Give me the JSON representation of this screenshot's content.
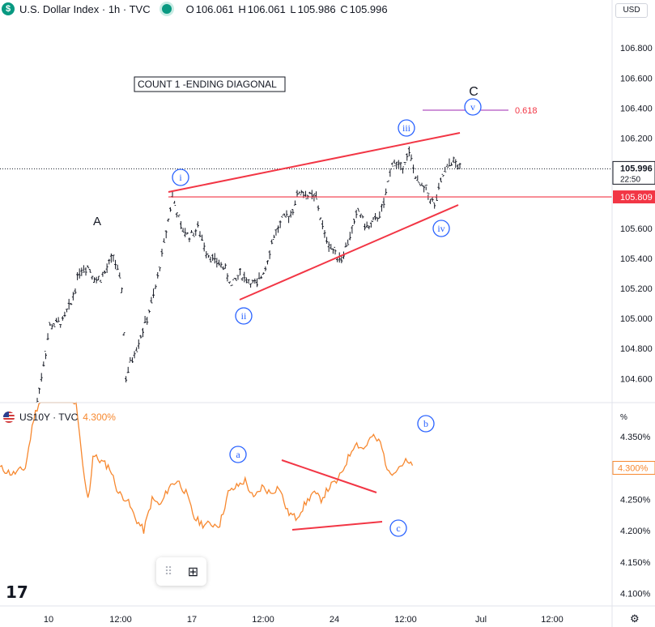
{
  "header": {
    "logo_glyph": "$",
    "title": "U.S. Dollar Index · 1h · TVC",
    "ohlc": [
      {
        "k": "O",
        "v": "106.061"
      },
      {
        "k": "H",
        "v": "106.061"
      },
      {
        "k": "L",
        "v": "105.986"
      },
      {
        "k": "C",
        "v": "105.996"
      }
    ]
  },
  "currency_button": "USD",
  "lower_pane": {
    "title": "US10Y · TVC",
    "value": "4.300%",
    "unit_label": "%"
  },
  "colors": {
    "bull_bear_bars": "#131722",
    "wave_lines": "#f23645",
    "wave_label": "#2962ff",
    "us10y_line": "#f7882f",
    "fib_line": "#9c27b0",
    "axis_text": "#131722",
    "price_tag_bg": "#f23645"
  },
  "icons": [
    "tradingview-logo-icon",
    "settings-gear-icon",
    "drag-handle-icon",
    "object-tree-icon"
  ],
  "chart_data": [
    {
      "type": "ohlc",
      "title": "U.S. Dollar Index · 1h · TVC",
      "y_axis": {
        "ticks": [
          "104.600",
          "104.800",
          "105.000",
          "105.200",
          "105.400",
          "105.600",
          "105.800",
          "106.000",
          "106.200",
          "106.400",
          "106.600",
          "106.800"
        ],
        "range": [
          104.44,
          106.99
        ]
      },
      "x_axis": {
        "ticks": [
          "10",
          "12:00",
          "17",
          "12:00",
          "24",
          "12:00",
          "Jul",
          "12:00"
        ]
      },
      "last_price": {
        "value": "105.996",
        "time": "22:50"
      },
      "horizontal_level": {
        "value": "105.809"
      },
      "annotations": {
        "box_text": "COUNT 1 -ENDING DIAGONAL",
        "fib_label": "0.618",
        "wave_A": "A",
        "wave_C": "C",
        "waves": [
          "i",
          "ii",
          "iii",
          "iv",
          "v"
        ]
      },
      "price_path": [
        [
          0,
          104.45
        ],
        [
          3,
          104.95
        ],
        [
          6,
          104.98
        ],
        [
          8,
          105.1
        ],
        [
          10,
          105.32
        ],
        [
          12,
          105.35
        ],
        [
          14,
          105.25
        ],
        [
          16,
          105.3
        ],
        [
          18,
          105.42
        ],
        [
          20,
          105.2
        ],
        [
          21,
          104.6
        ],
        [
          22,
          104.7
        ],
        [
          24,
          104.85
        ],
        [
          26,
          105.0
        ],
        [
          28,
          105.2
        ],
        [
          30,
          105.5
        ],
        [
          32,
          105.82
        ],
        [
          34,
          105.6
        ],
        [
          36,
          105.55
        ],
        [
          38,
          105.6
        ],
        [
          40,
          105.45
        ],
        [
          42,
          105.38
        ],
        [
          44,
          105.35
        ],
        [
          46,
          105.22
        ],
        [
          48,
          105.3
        ],
        [
          50,
          105.25
        ],
        [
          52,
          105.22
        ],
        [
          54,
          105.35
        ],
        [
          56,
          105.55
        ],
        [
          58,
          105.65
        ],
        [
          60,
          105.7
        ],
        [
          62,
          105.85
        ],
        [
          64,
          105.82
        ],
        [
          66,
          105.8
        ],
        [
          68,
          105.55
        ],
        [
          70,
          105.45
        ],
        [
          72,
          105.4
        ],
        [
          74,
          105.55
        ],
        [
          76,
          105.72
        ],
        [
          78,
          105.6
        ],
        [
          80,
          105.65
        ],
        [
          82,
          105.75
        ],
        [
          84,
          106.05
        ],
        [
          86,
          106.0
        ],
        [
          88,
          106.1
        ],
        [
          90,
          105.9
        ],
        [
          92,
          105.85
        ],
        [
          94,
          105.75
        ],
        [
          96,
          105.95
        ],
        [
          98,
          106.05
        ],
        [
          100,
          106.0
        ]
      ]
    },
    {
      "type": "line",
      "title": "US10Y · TVC",
      "y_axis": {
        "ticks": [
          "4.100%",
          "4.150%",
          "4.200%",
          "4.250%",
          "4.350%"
        ],
        "range": [
          4.08,
          4.4
        ]
      },
      "last_value": "4.300%",
      "annotations": {
        "waves": [
          "a",
          "b",
          "c"
        ]
      },
      "series": [
        {
          "name": "US10Y",
          "values": [
            [
              0,
              4.3
            ],
            [
              3,
              4.29
            ],
            [
              6,
              4.3
            ],
            [
              8,
              4.38
            ],
            [
              10,
              4.42
            ],
            [
              16,
              4.42
            ],
            [
              18,
              4.4
            ],
            [
              20,
              4.28
            ],
            [
              21,
              4.25
            ],
            [
              22,
              4.32
            ],
            [
              24,
              4.31
            ],
            [
              26,
              4.3
            ],
            [
              28,
              4.26
            ],
            [
              30,
              4.25
            ],
            [
              32,
              4.22
            ],
            [
              34,
              4.2
            ],
            [
              36,
              4.25
            ],
            [
              38,
              4.24
            ],
            [
              40,
              4.27
            ],
            [
              42,
              4.28
            ],
            [
              44,
              4.26
            ],
            [
              46,
              4.22
            ],
            [
              48,
              4.21
            ],
            [
              52,
              4.21
            ],
            [
              54,
              4.26
            ],
            [
              56,
              4.27
            ],
            [
              58,
              4.28
            ],
            [
              60,
              4.25
            ],
            [
              62,
              4.27
            ],
            [
              64,
              4.26
            ],
            [
              66,
              4.27
            ],
            [
              68,
              4.23
            ],
            [
              70,
              4.22
            ],
            [
              72,
              4.24
            ],
            [
              74,
              4.26
            ],
            [
              76,
              4.25
            ],
            [
              78,
              4.27
            ],
            [
              80,
              4.28
            ],
            [
              82,
              4.31
            ],
            [
              84,
              4.34
            ],
            [
              86,
              4.33
            ],
            [
              88,
              4.35
            ],
            [
              90,
              4.34
            ],
            [
              92,
              4.29
            ],
            [
              94,
              4.3
            ],
            [
              96,
              4.31
            ],
            [
              98,
              4.3
            ]
          ]
        }
      ]
    }
  ]
}
